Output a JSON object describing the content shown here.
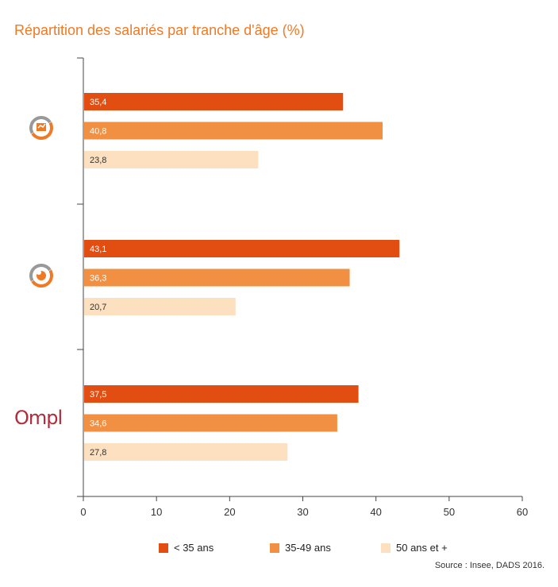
{
  "title": "Répartition des salariés par tranche d'âge (%)",
  "source": "Source : Insee, DADS 2016.",
  "colors": {
    "title": "#ee7a26",
    "series_1": "#e24e12",
    "series_2": "#f19043",
    "series_3": "#fde0bf",
    "axis": "#444444",
    "logo_ompl": "#b42a3a"
  },
  "legend": [
    {
      "label": "< 35 ans"
    },
    {
      "label": "35-49 ans"
    },
    {
      "label": "50 ans et +"
    }
  ],
  "groups": [
    {
      "logo": "orange-circle-arrows-icon"
    },
    {
      "logo": "orange-circle-tools-icon"
    },
    {
      "logo": "ompl-logo",
      "logo_text": "Ompl"
    }
  ],
  "chart_data": {
    "type": "bar",
    "orientation": "horizontal",
    "title": "Répartition des salariés par tranche d'âge (%)",
    "xlabel": "",
    "ylabel": "",
    "xlim": [
      0,
      60
    ],
    "x_ticks": [
      0,
      10,
      20,
      30,
      40,
      50,
      60
    ],
    "grid": false,
    "legend_position": "bottom",
    "series": [
      {
        "name": "< 35 ans",
        "color": "#e24e12",
        "values": [
          35.4,
          43.1,
          37.5
        ],
        "labels": [
          "35,4",
          "43,1",
          "37,5"
        ]
      },
      {
        "name": "35-49 ans",
        "color": "#f19043",
        "values": [
          40.8,
          36.3,
          34.6
        ],
        "labels": [
          "40,8",
          "36,3",
          "34,6"
        ]
      },
      {
        "name": "50 ans et +",
        "color": "#fde0bf",
        "values": [
          23.8,
          20.7,
          27.8
        ],
        "labels": [
          "23,8",
          "20,7",
          "27,8"
        ]
      }
    ]
  }
}
